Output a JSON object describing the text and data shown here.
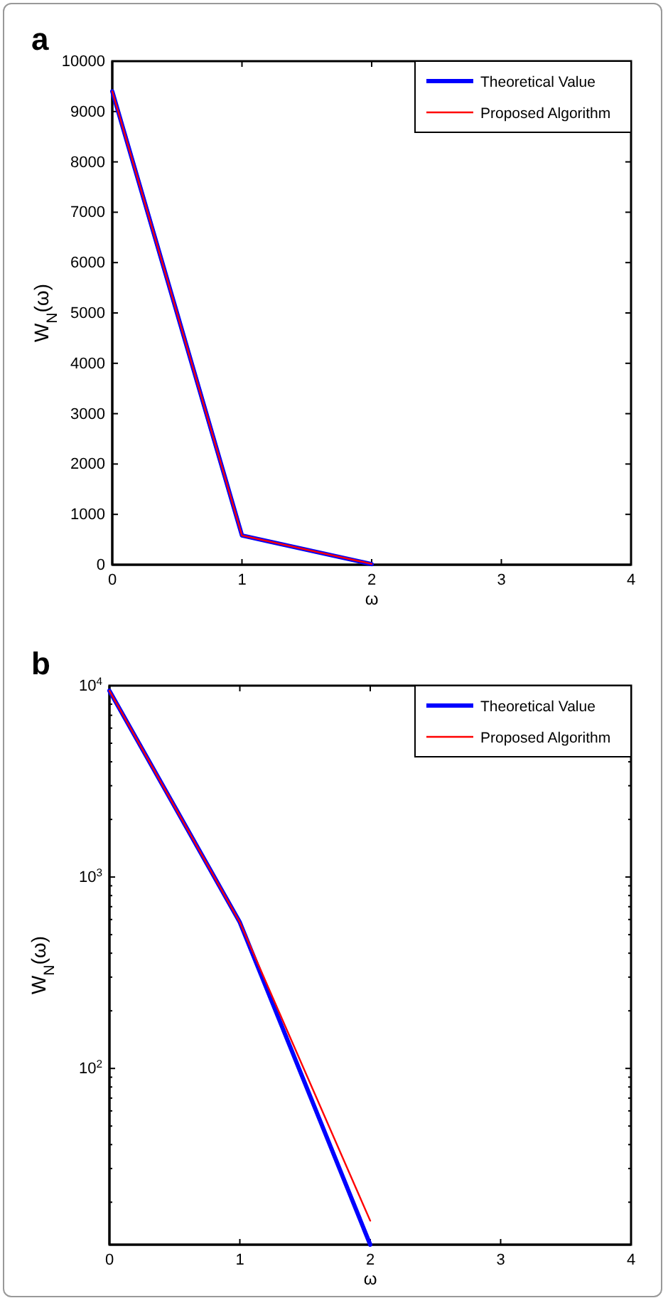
{
  "chart_data": [
    {
      "type": "line",
      "annotations": [
        "a"
      ],
      "xlabel": "ω",
      "ylabel": "W$_{N}$(ω)",
      "x": [
        0,
        1,
        2
      ],
      "series": [
        {
          "name": "Theoretical Value",
          "color": "#0000ff",
          "values": [
            9400,
            580,
            12
          ]
        },
        {
          "name": "Proposed Algorithm",
          "color": "#ff0000",
          "values": [
            9400,
            580,
            16
          ]
        }
      ],
      "xlim": [
        0,
        4
      ],
      "xticks": [
        0,
        1,
        2,
        3,
        4
      ],
      "ylim": [
        0,
        10000
      ],
      "yticks": [
        0,
        1000,
        2000,
        3000,
        4000,
        5000,
        6000,
        7000,
        8000,
        9000,
        10000
      ],
      "legend": "top right",
      "grid": false,
      "marker": "none",
      "line_style": "solid"
    },
    {
      "type": "line",
      "annotations": [
        "b"
      ],
      "xlabel": "ω",
      "ylabel": "W$_{N}$(ω)",
      "x": [
        0,
        1,
        2
      ],
      "series": [
        {
          "name": "Theoretical Value",
          "color": "#0000ff",
          "values": [
            9400,
            580,
            12
          ]
        },
        {
          "name": "Proposed Algorithm",
          "color": "#ff0000",
          "values": [
            9400,
            580,
            16
          ]
        }
      ],
      "xlim": [
        0,
        4
      ],
      "xticks": [
        0,
        1,
        2,
        3,
        4
      ],
      "ylim": [
        12,
        10000
      ],
      "log": true,
      "yticks": [
        {
          "value": 20,
          "label": null
        },
        {
          "value": 30,
          "label": null
        },
        {
          "value": 40,
          "label": null
        },
        {
          "value": 50,
          "label": null
        },
        {
          "value": 60,
          "label": null
        },
        {
          "value": 70,
          "label": null
        },
        {
          "value": 80,
          "label": null
        },
        {
          "value": 90,
          "label": null
        },
        {
          "value": 100,
          "label": "10$^{2}$"
        },
        {
          "value": 200,
          "label": null
        },
        {
          "value": 300,
          "label": null
        },
        {
          "value": 400,
          "label": null
        },
        {
          "value": 500,
          "label": null
        },
        {
          "value": 600,
          "label": null
        },
        {
          "value": 700,
          "label": null
        },
        {
          "value": 800,
          "label": null
        },
        {
          "value": 900,
          "label": null
        },
        {
          "value": 1000,
          "label": "10$^{3}$"
        },
        {
          "value": 2000,
          "label": null
        },
        {
          "value": 3000,
          "label": null
        },
        {
          "value": 4000,
          "label": null
        },
        {
          "value": 5000,
          "label": null
        },
        {
          "value": 6000,
          "label": null
        },
        {
          "value": 7000,
          "label": null
        },
        {
          "value": 8000,
          "label": null
        },
        {
          "value": 9000,
          "label": null
        },
        {
          "value": 10000,
          "label": "10$^{4}$"
        }
      ],
      "legend": "top right",
      "grid": false,
      "marker": "none",
      "line_style": "solid"
    }
  ]
}
